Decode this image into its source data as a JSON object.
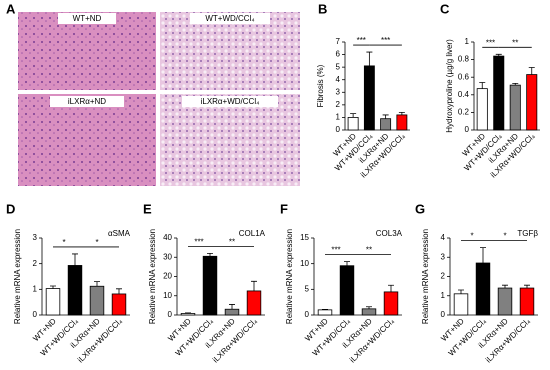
{
  "histology": {
    "panel": "A",
    "images": [
      {
        "label": "WT+ND"
      },
      {
        "label": "WT+WD/CCl₄"
      },
      {
        "label": "iLXRα+ND"
      },
      {
        "label": "iLXRα+WD/CCl₄"
      }
    ]
  },
  "chart_data": [
    {
      "type": "bar",
      "panel": "B",
      "ylabel": "Fibrosis (%)",
      "categories": [
        "WT+ND",
        "WT+WD/CCl₄",
        "iLXRα+ND",
        "iLXRα+WD/CCl₄"
      ],
      "values": [
        1.0,
        5.1,
        0.9,
        1.2
      ],
      "errors": [
        0.3,
        1.1,
        0.3,
        0.2
      ],
      "colors": [
        "#ffffff",
        "#000000",
        "#808080",
        "#ff0000"
      ],
      "ylim": [
        0,
        7
      ],
      "yticks": [
        0,
        1,
        2,
        3,
        4,
        5,
        6,
        7
      ],
      "significance": [
        {
          "text": "***",
          "from": 0,
          "to": 1
        },
        {
          "text": "***",
          "from": 1,
          "to": 3
        }
      ]
    },
    {
      "type": "bar",
      "panel": "C",
      "ylabel": "Hydroxyproline (µg/g liver)",
      "categories": [
        "WT+ND",
        "WT+WD/CCl₄",
        "iLXRα+ND",
        "iLXRα+WD/CCl₄"
      ],
      "values": [
        0.47,
        0.84,
        0.51,
        0.63
      ],
      "errors": [
        0.07,
        0.02,
        0.02,
        0.08
      ],
      "colors": [
        "#ffffff",
        "#000000",
        "#808080",
        "#ff0000"
      ],
      "ylim": [
        0,
        1
      ],
      "yticks": [
        0,
        0.2,
        0.4,
        0.6,
        0.8,
        1
      ],
      "significance": [
        {
          "text": "***",
          "from": 0,
          "to": 1
        },
        {
          "text": "**",
          "from": 1,
          "to": 3
        }
      ]
    },
    {
      "type": "bar",
      "panel": "D",
      "title": "αSMA",
      "ylabel": "Relative mRNA expression",
      "categories": [
        "WT+ND",
        "WT+WD/CCl₄",
        "iLXRα+ND",
        "iLXRα+WD/CCl₄"
      ],
      "values": [
        1.03,
        1.93,
        1.12,
        0.82
      ],
      "errors": [
        0.1,
        0.45,
        0.18,
        0.2
      ],
      "colors": [
        "#ffffff",
        "#000000",
        "#808080",
        "#ff0000"
      ],
      "ylim": [
        0,
        3
      ],
      "yticks": [
        0,
        1,
        2,
        3
      ],
      "significance": [
        {
          "text": "*",
          "from": 0,
          "to": 1
        },
        {
          "text": "*",
          "from": 1,
          "to": 3
        }
      ]
    },
    {
      "type": "bar",
      "panel": "E",
      "title": "COL1A",
      "ylabel": "Relative mRNA expression",
      "categories": [
        "WT+ND",
        "WT+WD/CCl₄",
        "iLXRα+ND",
        "iLXRα+WD/CCl₄"
      ],
      "values": [
        0.8,
        30.5,
        3,
        12.5
      ],
      "errors": [
        0.3,
        1.5,
        2.5,
        5
      ],
      "colors": [
        "#ffffff",
        "#000000",
        "#808080",
        "#ff0000"
      ],
      "ylim": [
        0,
        40
      ],
      "yticks": [
        0,
        10,
        20,
        30,
        40
      ],
      "significance": [
        {
          "text": "***",
          "from": 0,
          "to": 1
        },
        {
          "text": "**",
          "from": 1,
          "to": 3
        }
      ]
    },
    {
      "type": "bar",
      "panel": "F",
      "title": "COL3A",
      "ylabel": "Relative mRNA expression",
      "categories": [
        "WT+ND",
        "WT+WD/CCl₄",
        "iLXRα+ND",
        "iLXRα+WD/CCl₄"
      ],
      "values": [
        1,
        9.6,
        1.2,
        4.5
      ],
      "errors": [
        0.1,
        0.8,
        0.4,
        1.3
      ],
      "colors": [
        "#ffffff",
        "#000000",
        "#808080",
        "#ff0000"
      ],
      "ylim": [
        0,
        15
      ],
      "yticks": [
        0,
        5,
        10,
        15
      ],
      "significance": [
        {
          "text": "***",
          "from": 0,
          "to": 1
        },
        {
          "text": "**",
          "from": 1,
          "to": 3
        }
      ]
    },
    {
      "type": "bar",
      "panel": "G",
      "title": "TGFβ",
      "ylabel": "Relative mRNA expression",
      "categories": [
        "WT+ND",
        "WT+WD/CCl₄",
        "iLXRα+ND",
        "iLXRα+WD/CCl₄"
      ],
      "values": [
        1.1,
        2.7,
        1.4,
        1.4
      ],
      "errors": [
        0.2,
        0.8,
        0.15,
        0.15
      ],
      "colors": [
        "#ffffff",
        "#000000",
        "#808080",
        "#ff0000"
      ],
      "ylim": [
        0,
        4
      ],
      "yticks": [
        0,
        1,
        2,
        3,
        4
      ],
      "significance": [
        {
          "text": "*",
          "from": 0,
          "to": 1
        },
        {
          "text": "*",
          "from": 1,
          "to": 3
        }
      ]
    }
  ]
}
